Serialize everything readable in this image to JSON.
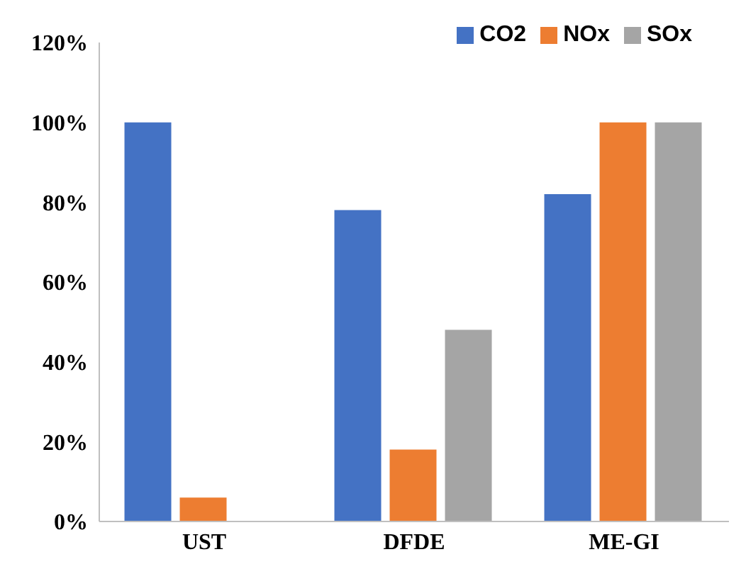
{
  "chart_data": {
    "type": "bar",
    "categories": [
      "UST",
      "DFDE",
      "ME-GI"
    ],
    "series": [
      {
        "name": "CO2",
        "color": "#4472c4",
        "values": [
          100,
          78,
          82
        ]
      },
      {
        "name": "NOx",
        "color": "#ed7d31",
        "values": [
          6,
          18,
          100
        ]
      },
      {
        "name": "SOx",
        "color": "#a5a5a5",
        "values": [
          0,
          48,
          100
        ]
      }
    ],
    "ylim": [
      0,
      120
    ],
    "yticks": [
      {
        "value": 0,
        "label": "0%"
      },
      {
        "value": 20,
        "label": "20%"
      },
      {
        "value": 40,
        "label": "40%"
      },
      {
        "value": 60,
        "label": "60%"
      },
      {
        "value": 80,
        "label": "80%"
      },
      {
        "value": 100,
        "label": "100%"
      },
      {
        "value": 120,
        "label": "120%"
      }
    ],
    "grid": false,
    "legend": "top right"
  }
}
